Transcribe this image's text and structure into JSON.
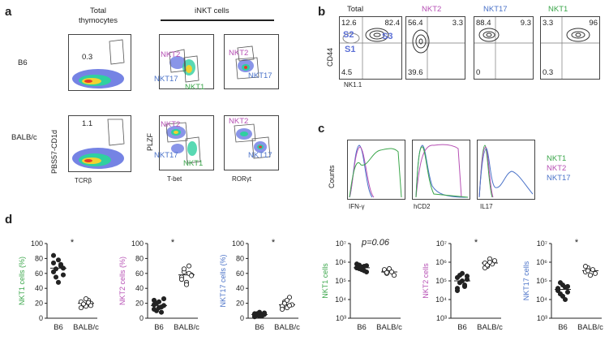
{
  "panels": {
    "a": {
      "letter": "a",
      "col_total": "Total\nthymocytes",
      "col_inkt": "iNKT cells",
      "row_b6": "B6",
      "row_balbc": "BALB/c",
      "y_pbs": "PBS57-CD1d",
      "x_tcrb": "TCRβ",
      "y_plzf": "PLZF",
      "x_tbet": "T-bet",
      "x_rorgt": "RORγt",
      "gate_b6": "0.3",
      "gate_balbc": "1.1",
      "nkt2": "NKT2",
      "nkt17": "NKT17",
      "nkt1": "NKT1",
      "colors": {
        "nkt1": "#3aa64a",
        "nkt2": "#b64fb4",
        "nkt17": "#4a72c8"
      }
    },
    "b": {
      "letter": "b",
      "cols": [
        "Total",
        "NKT2",
        "NKT17",
        "NKT1"
      ],
      "y": "CD44",
      "x": "NK1.1",
      "quads": [
        {
          "tl": "12.6",
          "tr": "82.4",
          "bl": "4.5"
        },
        {
          "tl": "56.4",
          "tr": "3.3",
          "bl": "39.6"
        },
        {
          "tl": "88.4",
          "tr": "9.3",
          "bl": "0"
        },
        {
          "tl": "3.3",
          "tr": "96",
          "bl": "0.3"
        }
      ],
      "s_labels": [
        "S2",
        "S3",
        "S1"
      ]
    },
    "c": {
      "letter": "c",
      "y": "Counts",
      "x": [
        "IFN-γ",
        "hCD2",
        "IL17"
      ],
      "legend": [
        "NKT1",
        "NKT2",
        "NKT17"
      ]
    },
    "d": {
      "letter": "d",
      "pval": "p=0.06",
      "star": "*"
    }
  },
  "chart_data": [
    {
      "type": "scatter",
      "ylabel": "NKT1 cells (%)",
      "categories": [
        "B6",
        "BALB/c"
      ],
      "ylim": [
        0,
        100
      ],
      "yticks": [
        "0",
        "20",
        "40",
        "60",
        "80",
        "100"
      ],
      "series": [
        {
          "values": [
            62,
            55,
            78,
            70,
            67,
            84,
            66,
            48,
            72,
            58,
            74
          ]
        },
        {
          "values": [
            22,
            18,
            16,
            24,
            20,
            14,
            19,
            26,
            21,
            17
          ]
        }
      ]
    },
    {
      "type": "scatter",
      "ylabel": "NKT2 cells (%)",
      "categories": [
        "B6",
        "BALB/c"
      ],
      "ylim": [
        0,
        100
      ],
      "yticks": [
        "0",
        "20",
        "40",
        "60",
        "80",
        "100"
      ],
      "series": [
        {
          "values": [
            18,
            10,
            22,
            15,
            26,
            12,
            20,
            14,
            8,
            17,
            24
          ]
        },
        {
          "values": [
            55,
            62,
            48,
            70,
            58,
            52,
            66,
            45,
            60,
            57
          ]
        }
      ]
    },
    {
      "type": "scatter",
      "ylabel": "NKT17 cells (%)",
      "categories": [
        "B6",
        "BALB/c"
      ],
      "ylim": [
        0,
        100
      ],
      "yticks": [
        "0",
        "20",
        "40",
        "60",
        "80",
        "100"
      ],
      "series": [
        {
          "values": [
            4,
            6,
            3,
            5,
            7,
            2,
            4,
            8,
            3,
            5,
            6
          ]
        },
        {
          "values": [
            16,
            22,
            14,
            28,
            18,
            12,
            20,
            24,
            17
          ]
        }
      ]
    },
    {
      "type": "scatter",
      "ylabel": "NKT1 cells",
      "categories": [
        "B6",
        "BALB/c"
      ],
      "scale": "log",
      "ylim": [
        1000,
        10000000
      ],
      "yticks": [
        "10³",
        "10⁴",
        "10⁵",
        "10⁶",
        "10⁷"
      ],
      "series": [
        {
          "values": [
            500000,
            700000,
            400000,
            600000,
            300000,
            800000,
            450000,
            550000,
            350000,
            650000,
            500000
          ]
        },
        {
          "values": [
            350000,
            250000,
            450000,
            300000,
            200000,
            400000,
            280000
          ]
        }
      ]
    },
    {
      "type": "scatter",
      "ylabel": "NKT2 cells",
      "categories": [
        "B6",
        "BALB/c"
      ],
      "scale": "log",
      "ylim": [
        1000,
        10000000
      ],
      "yticks": [
        "10³",
        "10⁴",
        "10⁵",
        "10⁶",
        "10⁷"
      ],
      "series": [
        {
          "values": [
            150000,
            80000,
            250000,
            50000,
            120000,
            30000,
            200000,
            100000,
            60000,
            180000,
            40000
          ]
        },
        {
          "values": [
            900000,
            600000,
            1500000,
            800000,
            1200000,
            500000,
            700000,
            1000000
          ]
        }
      ]
    },
    {
      "type": "scatter",
      "ylabel": "NKT17 cells",
      "categories": [
        "B6",
        "BALB/c"
      ],
      "scale": "log",
      "ylim": [
        1000,
        10000000
      ],
      "yticks": [
        "10³",
        "10⁴",
        "10⁵",
        "10⁶",
        "10⁷"
      ],
      "series": [
        {
          "values": [
            40000,
            20000,
            60000,
            10000,
            50000,
            30000,
            80000,
            15000,
            45000,
            25000,
            35000
          ]
        },
        {
          "values": [
            300000,
            500000,
            200000,
            400000,
            250000,
            600000,
            350000
          ]
        }
      ]
    }
  ]
}
